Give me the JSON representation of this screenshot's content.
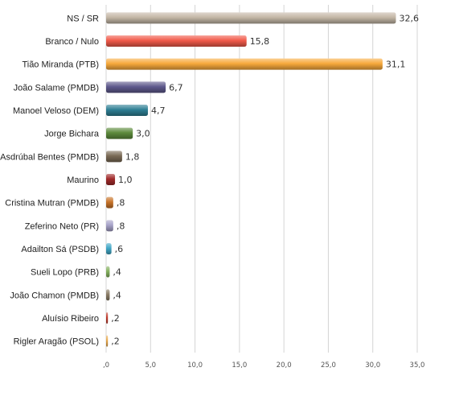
{
  "chart_data": {
    "type": "bar",
    "orientation": "horizontal",
    "categories": [
      "NS / SR",
      "Branco / Nulo",
      "Tião Miranda (PTB)",
      "João Salame (PMDB)",
      "Manoel Veloso (DEM)",
      "Jorge Bichara",
      "Asdrúbal Bentes (PMDB)",
      "Maurino",
      "Cristina Mutran (PMDB)",
      "Zeferino Neto (PR)",
      "Adailton Sá (PSDB)",
      "Sueli Lopo (PRB)",
      "João Chamon (PMDB)",
      "Aluísio Ribeiro",
      "Rigler Aragão (PSOL)"
    ],
    "values": [
      32.6,
      15.8,
      31.1,
      6.7,
      4.7,
      3.0,
      1.8,
      1.0,
      0.8,
      0.8,
      0.6,
      0.4,
      0.4,
      0.2,
      0.2
    ],
    "value_labels": [
      "32,6",
      "15,8",
      "31,1",
      "6,7",
      "4,7",
      "3,0",
      "1,8",
      "1,0",
      ",8",
      ",8",
      ",6",
      ",4",
      ",4",
      ",2",
      ",2"
    ],
    "colors": [
      "#c4b7a6",
      "#f15a4a",
      "#f7a93b",
      "#5f5a8d",
      "#2e7f94",
      "#5c8a3c",
      "#7a6a55",
      "#a12a2a",
      "#c8742a",
      "#a7a3c9",
      "#41a7c7",
      "#86b260",
      "#8b7d67",
      "#c0392b",
      "#e8a74a"
    ],
    "xlim": [
      0,
      35
    ],
    "x_ticks": [
      0,
      5,
      10,
      15,
      20,
      25,
      30,
      35
    ],
    "x_tick_labels": [
      ",0",
      "5,0",
      "10,0",
      "15,0",
      "20,0",
      "25,0",
      "30,0",
      "35,0"
    ],
    "grid": true,
    "title": "",
    "xlabel": "",
    "ylabel": ""
  }
}
